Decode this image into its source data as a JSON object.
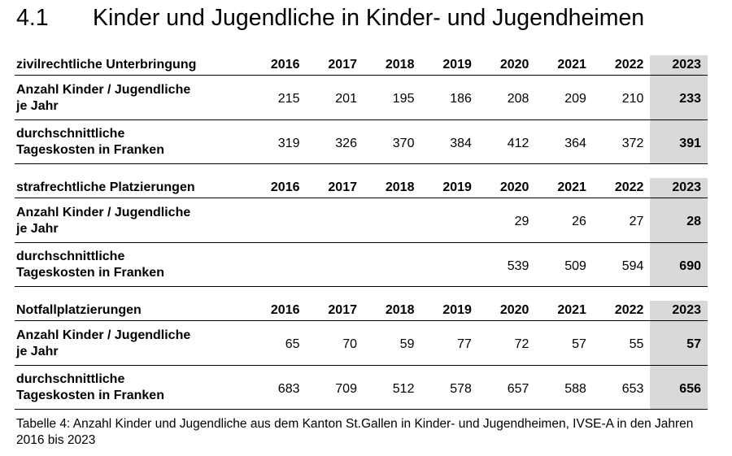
{
  "heading": {
    "number": "4.1",
    "title": "Kinder und Jugendliche in Kinder- und Jugendheimen"
  },
  "years": [
    "2016",
    "2017",
    "2018",
    "2019",
    "2020",
    "2021",
    "2022",
    "2023"
  ],
  "sections": [
    {
      "title": "zivilrechtliche Unterbringung",
      "rows": [
        {
          "label": [
            "Anzahl Kinder / Jugendliche",
            "je Jahr"
          ],
          "values": [
            "215",
            "201",
            "195",
            "186",
            "208",
            "209",
            "210",
            "233"
          ]
        },
        {
          "label": [
            "durchschnittliche",
            "Tageskosten in Franken"
          ],
          "values": [
            "319",
            "326",
            "370",
            "384",
            "412",
            "364",
            "372",
            "391"
          ]
        }
      ]
    },
    {
      "title": "strafrechtliche Platzierungen",
      "rows": [
        {
          "label": [
            "Anzahl Kinder / Jugendliche",
            "je Jahr"
          ],
          "values": [
            "",
            "",
            "",
            "",
            "29",
            "26",
            "27",
            "28"
          ]
        },
        {
          "label": [
            "durchschnittliche",
            "Tageskosten in Franken"
          ],
          "values": [
            "",
            "",
            "",
            "",
            "539",
            "509",
            "594",
            "690"
          ]
        }
      ]
    },
    {
      "title": "Notfallplatzierungen",
      "rows": [
        {
          "label": [
            "Anzahl Kinder / Jugendliche",
            "je Jahr"
          ],
          "values": [
            "65",
            "70",
            "59",
            "77",
            "72",
            "57",
            "55",
            "57"
          ]
        },
        {
          "label": [
            "durchschnittliche",
            "Tageskosten in Franken"
          ],
          "values": [
            "683",
            "709",
            "512",
            "578",
            "657",
            "588",
            "653",
            "656"
          ]
        }
      ]
    }
  ],
  "caption": "Tabelle 4: Anzahl Kinder und Jugendliche aus dem Kanton St.Gallen in Kinder- und Jugendheimen, IVSE-A in den Jahren 2016 bis 2023",
  "colors": {
    "highlight_column": "#d9d9d9",
    "rule": "#000000"
  }
}
